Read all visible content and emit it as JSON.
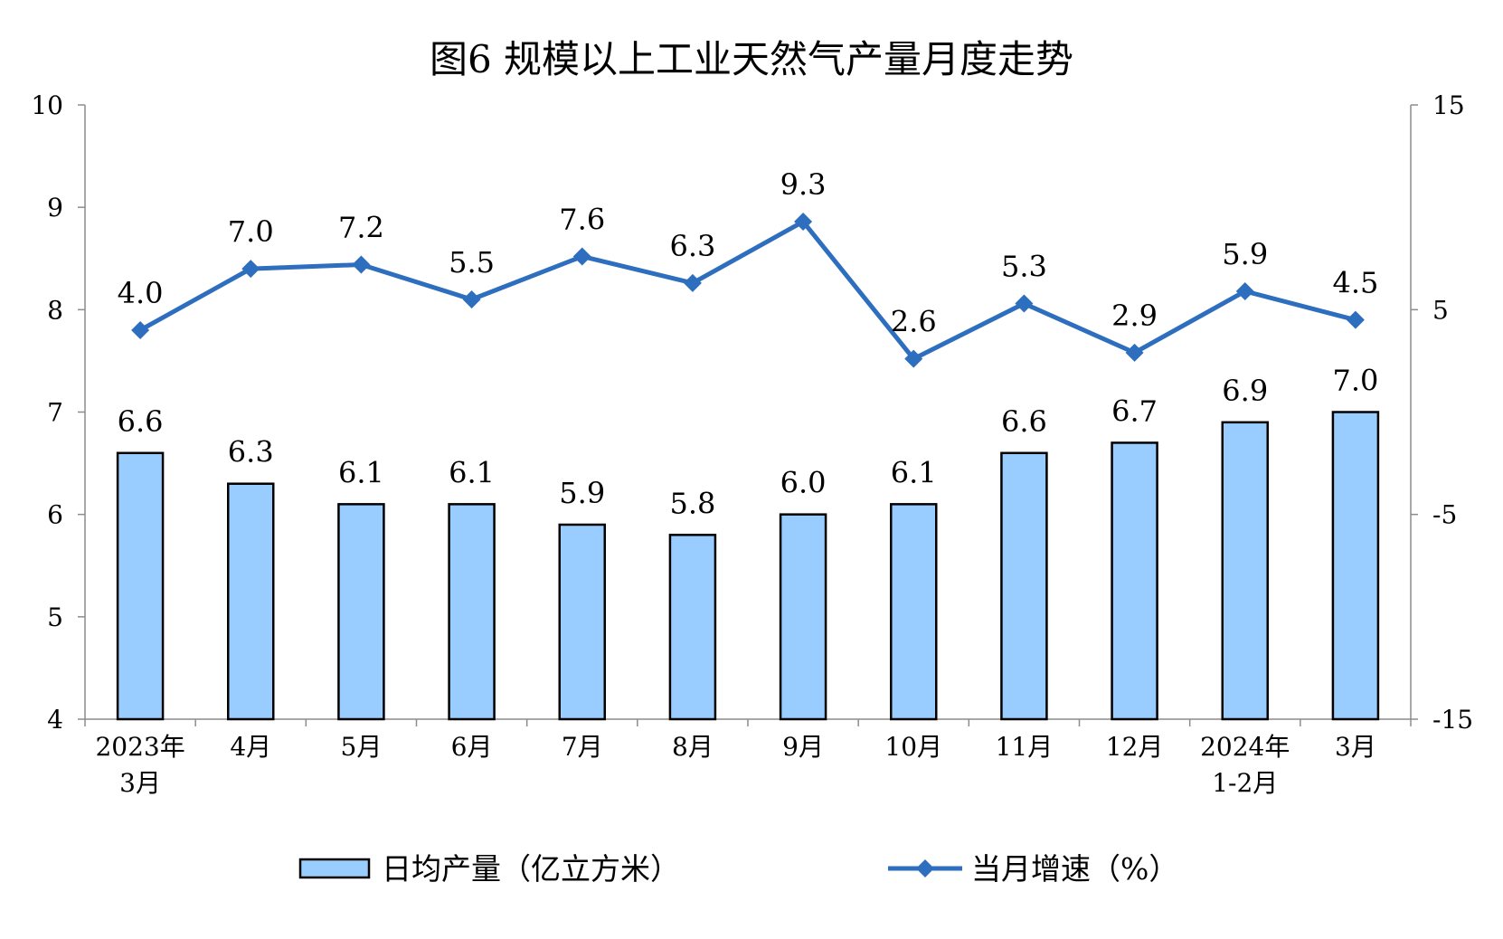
{
  "chart_data": {
    "type": "bar",
    "title": "图6 规模以上工业天然气产量月度走势",
    "categories": [
      [
        "2023年",
        "3月"
      ],
      [
        "4月"
      ],
      [
        "5月"
      ],
      [
        "6月"
      ],
      [
        "7月"
      ],
      [
        "8月"
      ],
      [
        "9月"
      ],
      [
        "10月"
      ],
      [
        "11月"
      ],
      [
        "12月"
      ],
      [
        "2024年",
        "1-2月"
      ],
      [
        "3月"
      ]
    ],
    "left_axis": {
      "ylim": [
        4,
        10
      ],
      "ticks": [
        "4",
        "5",
        "6",
        "7",
        "8",
        "9",
        "10"
      ]
    },
    "right_axis": {
      "ylim": [
        -15,
        15
      ],
      "ticks": [
        "-15",
        "-5",
        "5",
        "15"
      ]
    },
    "series": [
      {
        "name": "日均产量（亿立方米）",
        "type": "bar",
        "axis": "left",
        "color": "#99CCFF",
        "values": [
          6.6,
          6.3,
          6.1,
          6.1,
          5.9,
          5.8,
          6.0,
          6.1,
          6.6,
          6.7,
          6.9,
          7.0
        ],
        "labels": [
          "6.6",
          "6.3",
          "6.1",
          "6.1",
          "5.9",
          "5.8",
          "6.0",
          "6.1",
          "6.6",
          "6.7",
          "6.9",
          "7.0"
        ]
      },
      {
        "name": "当月增速（%）",
        "type": "line",
        "axis": "right",
        "color": "#2E6EBE",
        "values": [
          4.0,
          7.0,
          7.2,
          5.5,
          7.6,
          6.3,
          9.3,
          2.6,
          5.3,
          2.9,
          5.9,
          4.5
        ],
        "labels": [
          "4.0",
          "7.0",
          "7.2",
          "5.5",
          "7.6",
          "6.3",
          "9.3",
          "2.6",
          "5.3",
          "2.9",
          "5.9",
          "4.5"
        ]
      }
    ],
    "grid": false,
    "legend": "bottom"
  }
}
